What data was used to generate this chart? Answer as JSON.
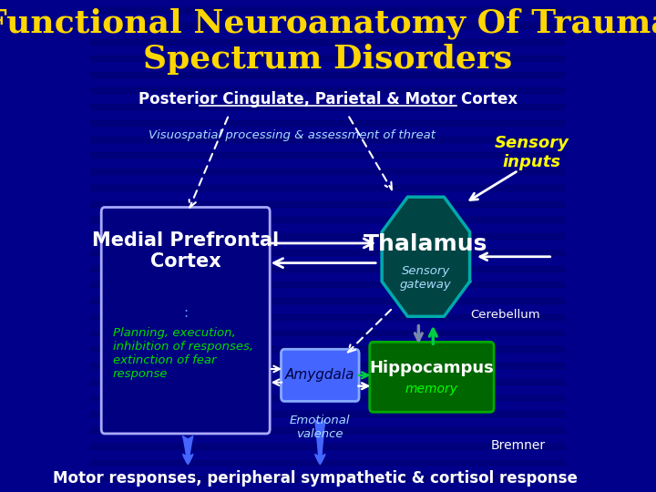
{
  "title": "Functional Neuroanatomy Of Trauma\nSpectrum Disorders",
  "title_color": "#FFD700",
  "subtitle": "Posterior Cingulate, Parietal & Motor Cortex",
  "subtitle_color": "#FFFFFF",
  "bg_color": "#00008B",
  "visuospatial_text": "Visuospatial processing & assessment of threat",
  "visuospatial_color": "#AADDFF",
  "sensory_inputs_text": "Sensory\ninputs",
  "sensory_inputs_color": "#FFFF00",
  "cerebellum_text": "Cerebellum",
  "cerebellum_color": "#FFFFFF",
  "bremner_text": "Bremner",
  "bremner_color": "#FFFFFF",
  "bottom_text": "Motor responses, peripheral sympathetic & cortisol response",
  "bottom_color": "#FFFFFF",
  "mpfc_title": "Medial Prefrontal\nCortex",
  "mpfc_title_color": "#FFFFFF",
  "mpfc_subtitle": ":",
  "mpfc_subtitle_color": "#6699FF",
  "mpfc_body": "Planning, execution,\ninhibition of responses,\nextinction of fear\nresponse",
  "mpfc_body_color": "#00DD00",
  "mpfc_box_color": "#000080",
  "mpfc_box_edge": "#AAAAFF",
  "thalamus_title": "Thalamus",
  "thalamus_title_color": "#FFFFFF",
  "thalamus_sub": "Sensory\ngateway",
  "thalamus_sub_color": "#AADDFF",
  "thalamus_color": "#004444",
  "thalamus_edge": "#00AAAA",
  "hippocampus_title": "Hippocampus",
  "hippocampus_sub": "memory",
  "hippocampus_title_color": "#FFFFFF",
  "hippocampus_sub_color": "#00FF00",
  "hippocampus_color": "#006600",
  "hippocampus_edge": "#00AA00",
  "amygdala_text": "Amygdala",
  "amygdala_color": "#4466FF",
  "amygdala_edge": "#88AAFF",
  "amygdala_text_color": "#000044",
  "emotional_valence_text": "Emotional\nvalence",
  "emotional_valence_color": "#AADDFF",
  "arrow_color_white": "#FFFFFF",
  "arrow_color_green": "#00CC44",
  "arrow_color_slate": "#7788AA",
  "arrow_color_blue": "#4466FF",
  "stripe_color": "#000066"
}
